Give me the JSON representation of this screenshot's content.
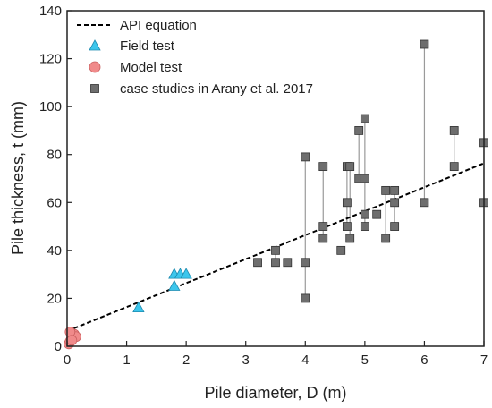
{
  "chart_data": {
    "type": "scatter",
    "xlabel": "Pile diameter, D (m)",
    "ylabel": "Pile thickness, t (mm)",
    "xlim": [
      0,
      7
    ],
    "ylim": [
      0,
      140
    ],
    "xticks": [
      0,
      1,
      2,
      3,
      4,
      5,
      6,
      7
    ],
    "yticks": [
      0,
      20,
      40,
      60,
      80,
      100,
      120,
      140
    ],
    "grid": false,
    "legend_position": "top-left",
    "series": [
      {
        "name": "API equation",
        "kind": "line",
        "style": "dashed",
        "color": "#000000",
        "x": [
          0,
          7
        ],
        "y": [
          6.35,
          76.35
        ]
      },
      {
        "name": "Field test",
        "kind": "marker",
        "marker": "triangle",
        "color": "#3cc6ec",
        "x": [
          1.2,
          1.8,
          1.8,
          1.9,
          2.0
        ],
        "y": [
          16,
          25,
          30,
          30,
          30
        ]
      },
      {
        "name": "Model test",
        "kind": "marker",
        "marker": "circle",
        "color": "#f08a8a",
        "x": [
          0.03,
          0.05,
          0.07,
          0.1,
          0.12,
          0.15,
          0.05,
          0.08
        ],
        "y": [
          1,
          2,
          3,
          4,
          5,
          4,
          6,
          2.5
        ]
      },
      {
        "name": "case studies in Arany et al. 2017",
        "kind": "marker",
        "marker": "square",
        "color": "#6e6e6e",
        "x": [
          3.2,
          3.5,
          3.5,
          3.7,
          4.0,
          4.0,
          4.0,
          4.3,
          4.3,
          4.3,
          4.6,
          4.7,
          4.7,
          4.7,
          4.75,
          4.75,
          4.9,
          4.9,
          5.0,
          5.0,
          5.0,
          5.0,
          5.2,
          5.35,
          5.35,
          5.5,
          5.5,
          5.5,
          6.0,
          6.0,
          6.5,
          6.5,
          7.0,
          7.0
        ],
        "y": [
          35,
          35,
          40,
          35,
          20,
          35,
          79,
          45,
          50,
          75,
          40,
          50,
          60,
          75,
          45,
          75,
          70,
          90,
          50,
          55,
          70,
          95,
          55,
          45,
          65,
          50,
          60,
          65,
          60,
          126,
          75,
          90,
          60,
          85
        ]
      }
    ],
    "range_links": [
      {
        "x": 3.5,
        "y": [
          35,
          40
        ]
      },
      {
        "x": 4.0,
        "y": [
          20,
          79
        ]
      },
      {
        "x": 4.3,
        "y": [
          45,
          75
        ]
      },
      {
        "x": 4.7,
        "y": [
          50,
          75
        ]
      },
      {
        "x": 4.75,
        "y": [
          45,
          75
        ]
      },
      {
        "x": 4.9,
        "y": [
          70,
          90
        ]
      },
      {
        "x": 5.0,
        "y": [
          50,
          95
        ]
      },
      {
        "x": 5.35,
        "y": [
          45,
          65
        ]
      },
      {
        "x": 5.5,
        "y": [
          50,
          65
        ]
      },
      {
        "x": 6.0,
        "y": [
          60,
          126
        ]
      },
      {
        "x": 6.5,
        "y": [
          75,
          90
        ]
      },
      {
        "x": 7.0,
        "y": [
          60,
          85
        ]
      }
    ]
  }
}
